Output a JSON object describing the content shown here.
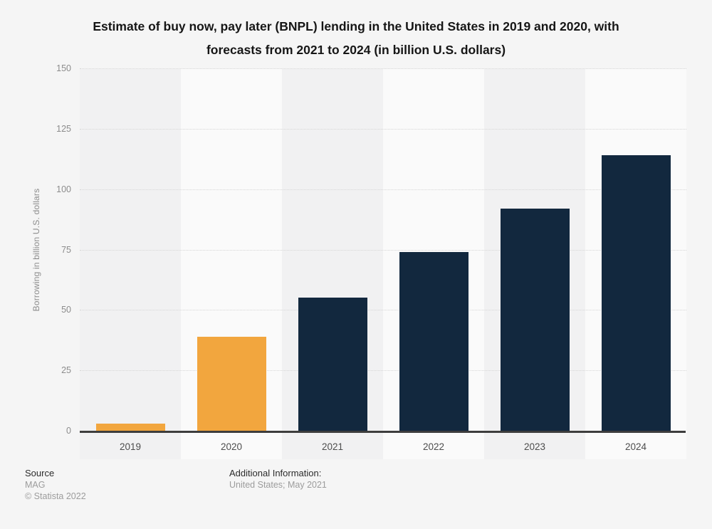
{
  "title": "Estimate of buy now, pay later (BNPL) lending in the United States in 2019 and 2020, with forecasts from 2021 to 2024 (in billion U.S. dollars)",
  "chart_data": {
    "type": "bar",
    "categories": [
      "2019",
      "2020",
      "2021",
      "2022",
      "2023",
      "2024"
    ],
    "values": [
      3,
      39,
      55,
      74,
      92,
      114
    ],
    "bar_colors": [
      "#f2a63e",
      "#f2a63e",
      "#12283e",
      "#12283e",
      "#12283e",
      "#12283e"
    ],
    "title": "Estimate of buy now, pay later (BNPL) lending in the United States in 2019 and 2020, with forecasts from 2021 to 2024 (in billion U.S. dollars)",
    "xlabel": "",
    "ylabel": "Borrowing in billion U.S. dollars",
    "ylim": [
      0,
      150
    ],
    "yticks": [
      0,
      25,
      50,
      75,
      100,
      125,
      150
    ],
    "grid": "horizontal-dotted",
    "legend_position": "none"
  },
  "colors": {
    "orange": "#f2a63e",
    "navy": "#12283e",
    "background": "#f5f5f5",
    "stripe_dark": "#f1f1f2",
    "stripe_light": "#fafafa",
    "axis": "#3d3d3d",
    "gridline": "#d6d6d6"
  },
  "footer": {
    "source_label": "Source",
    "source_value": "MAG",
    "copyright": "© Statista 2022",
    "additional_info_label": "Additional Information:",
    "additional_info_value": "United States; May 2021"
  }
}
